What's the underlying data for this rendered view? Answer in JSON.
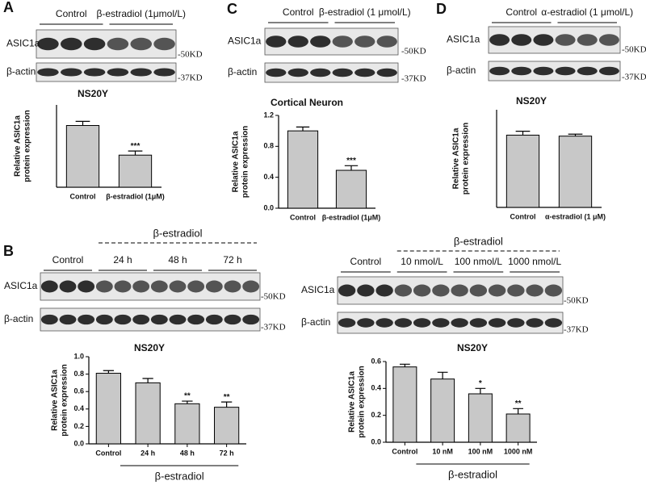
{
  "panel_letters": [
    "A",
    "C",
    "D",
    "B"
  ],
  "blots": [
    {
      "labels": [
        "Control",
        "β-estradiol (1μmol/L)"
      ],
      "rows": [
        "ASIC1a",
        "β-actin"
      ],
      "markers": [
        "-50KD",
        "-37KD"
      ]
    },
    {
      "labels": [
        "Control",
        "β-estradiol (1 μmol/L)"
      ],
      "rows": [
        "ASIC1a",
        "β-actin"
      ],
      "markers": [
        "-50KD",
        "-37KD"
      ]
    },
    {
      "labels": [
        "Control",
        "α-estradiol (1 μmol/L)"
      ],
      "rows": [
        "ASIC1a",
        "β-actin"
      ],
      "markers": [
        "-50KD",
        "-37KD"
      ]
    },
    {
      "group": "β-estradiol",
      "labels": [
        "Control",
        "24 h",
        "48 h",
        "72 h"
      ],
      "rows": [
        "ASIC1a",
        "β-actin"
      ],
      "markers": [
        "-50KD",
        "-37KD"
      ]
    },
    {
      "group": "β-estradiol",
      "labels": [
        "Control",
        "10 nmol/L",
        "100 nmol/L",
        "1000 nmol/L"
      ],
      "rows": [
        "ASIC1a",
        "β-actin"
      ],
      "markers": [
        "-50KD",
        "-37KD"
      ]
    }
  ],
  "chart_data": [
    {
      "type": "bar",
      "title": "NS20Y",
      "ylabel": [
        "Relative ASIC1a",
        "protein expression"
      ],
      "categories": [
        "Control",
        "β-estradiol (1μM)"
      ],
      "values": [
        0.75,
        0.39
      ],
      "errors": [
        0.05,
        0.05
      ],
      "annotations": [
        null,
        "***"
      ],
      "ylim": [
        0,
        1
      ],
      "color": "#c8c8c8"
    },
    {
      "type": "bar",
      "title": "Cortical Neuron",
      "ylabel": [
        "Relative ASIC1a",
        "protein expression"
      ],
      "categories": [
        "Control",
        "β-estradiol (1μM)"
      ],
      "values": [
        1.0,
        0.49
      ],
      "errors": [
        0.05,
        0.06
      ],
      "annotations": [
        null,
        "***"
      ],
      "ylim": [
        0,
        1.2
      ],
      "yticks": [
        {
          "value": 0,
          "label": "0.0"
        },
        0.4,
        0.8,
        1.2
      ],
      "color": "#c8c8c8"
    },
    {
      "type": "bar",
      "title": "NS20Y",
      "ylabel": [
        "Relative ASIC1a",
        "protein expression"
      ],
      "categories": [
        "Control",
        "α-estradiol (1 μM)"
      ],
      "values": [
        0.74,
        0.73
      ],
      "errors": [
        0.04,
        0.02
      ],
      "annotations": [
        null,
        null
      ],
      "ylim": [
        0,
        1
      ],
      "color": "#c8c8c8"
    },
    {
      "type": "bar",
      "title": "NS20Y",
      "ylabel": [
        "Relative ASIC1a",
        "protein expression"
      ],
      "categories": [
        "Control",
        "24 h",
        "48 h",
        "72 h"
      ],
      "values": [
        0.81,
        0.7,
        0.46,
        0.42
      ],
      "errors": [
        0.03,
        0.05,
        0.03,
        0.06
      ],
      "annotations": [
        null,
        null,
        "**",
        "**"
      ],
      "group_label": "β-estradiol",
      "ylim": [
        0,
        1
      ],
      "yticks": [
        {
          "value": 0,
          "label": "0.0"
        },
        0.2,
        0.4,
        0.6,
        0.8,
        {
          "value": 1,
          "label": "1.0"
        }
      ],
      "color": "#c8c8c8"
    },
    {
      "type": "bar",
      "title": "NS20Y",
      "ylabel": [
        "Relative ASIC1a",
        "protein expression"
      ],
      "categories": [
        "Control",
        "10 nM",
        "100 nM",
        "1000 nM"
      ],
      "values": [
        0.56,
        0.47,
        0.36,
        0.21
      ],
      "errors": [
        0.02,
        0.05,
        0.04,
        0.04
      ],
      "annotations": [
        null,
        null,
        "*",
        "**"
      ],
      "group_label": "β-estradiol",
      "ylim": [
        0,
        0.6
      ],
      "yticks": [
        {
          "value": 0,
          "label": "0.0"
        },
        0.2,
        0.4,
        0.6
      ],
      "color": "#c8c8c8"
    }
  ]
}
